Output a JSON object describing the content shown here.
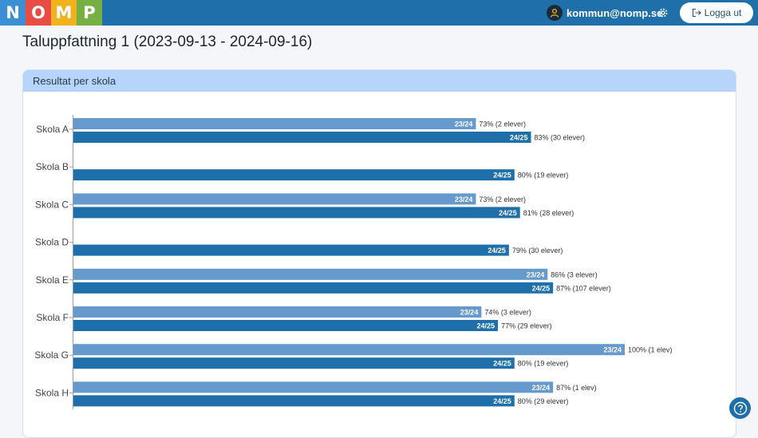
{
  "header": {
    "logo_letters": [
      {
        "letter": "N",
        "color": "#3b8fd4"
      },
      {
        "letter": "O",
        "color": "#e94c44"
      },
      {
        "letter": "M",
        "color": "#f2b21c"
      },
      {
        "letter": "P",
        "color": "#76b043"
      }
    ],
    "user_email": "kommun@nomp.se",
    "logout_label": "Logga ut",
    "icons": [
      "user-icon",
      "gear-icon",
      "logout-icon"
    ]
  },
  "page": {
    "title": "Taluppfattning 1 (2023-09-13 - 2024-09-16)"
  },
  "card": {
    "title": "Resultat per skola"
  },
  "help_icon": "question-icon",
  "chart_data": {
    "type": "bar",
    "orientation": "horizontal",
    "xlim": [
      0,
      100
    ],
    "categories": [
      "Skola A",
      "Skola B",
      "Skola C",
      "Skola D",
      "Skola E",
      "Skola F",
      "Skola G",
      "Skola H"
    ],
    "series": [
      {
        "name": "23/24",
        "color": "#6699cc",
        "values": [
          73,
          null,
          73,
          null,
          86,
          74,
          100,
          87
        ],
        "annotations": [
          "73% (2 elever)",
          "",
          "73% (2 elever)",
          "",
          "86% (3 elever)",
          "74% (3 elever)",
          "100% (1 elev)",
          "87% (1 elev)"
        ]
      },
      {
        "name": "24/25",
        "color": "#1f6fab",
        "values": [
          83,
          80,
          81,
          79,
          87,
          77,
          80,
          80
        ],
        "annotations": [
          "83% (30 elever)",
          "80% (19 elever)",
          "81% (28 elever)",
          "79% (30 elever)",
          "87% (107 elever)",
          "77% (29 elever)",
          "80% (19 elever)",
          "80% (29 elever)"
        ]
      }
    ]
  }
}
